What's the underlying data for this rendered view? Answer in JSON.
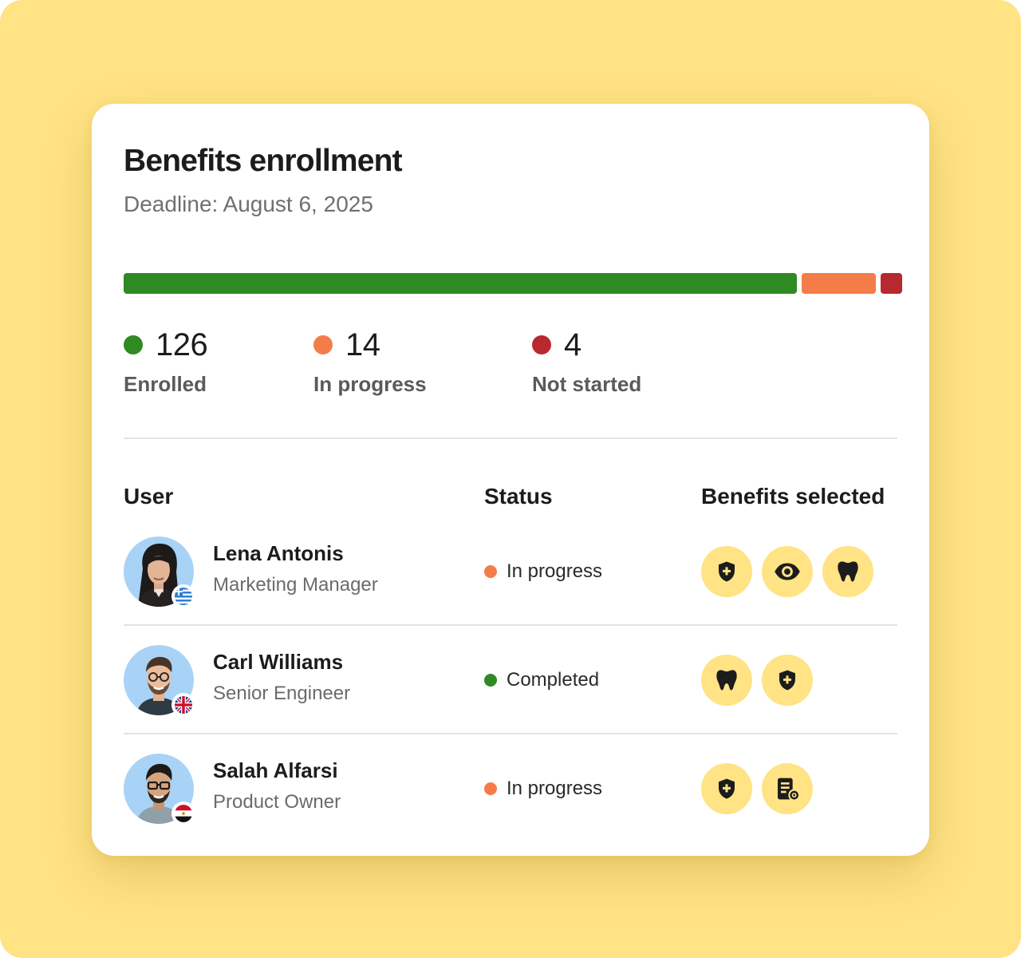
{
  "title": "Benefits enrollment",
  "deadline": "Deadline: August 6, 2025",
  "colors": {
    "enrolled": "#2f8a24",
    "in_progress": "#f47c48",
    "not_started": "#b7292e",
    "accent_bg": "#ffe384"
  },
  "stats": [
    {
      "key": "enrolled",
      "value": 126,
      "value_text": "126",
      "label": "Enrolled"
    },
    {
      "key": "in_progress",
      "value": 14,
      "value_text": "14",
      "label": "In progress"
    },
    {
      "key": "not_started",
      "value": 4,
      "value_text": "4",
      "label": "Not started"
    }
  ],
  "table": {
    "headers": {
      "user": "User",
      "status": "Status",
      "benefits": "Benefits selected"
    },
    "rows": [
      {
        "name": "Lena Antonis",
        "role": "Marketing Manager",
        "flag": "greece-flag-icon",
        "status": "In progress",
        "status_key": "in_progress",
        "benefits": [
          "health-shield-icon",
          "vision-eye-icon",
          "dental-tooth-icon"
        ]
      },
      {
        "name": "Carl Williams",
        "role": "Senior Engineer",
        "flag": "uk-flag-icon",
        "status": "Completed",
        "status_key": "enrolled",
        "benefits": [
          "dental-tooth-icon",
          "health-shield-icon"
        ]
      },
      {
        "name": "Salah Alfarsi",
        "role": "Product Owner",
        "flag": "egypt-flag-icon",
        "status": "In progress",
        "status_key": "in_progress",
        "benefits": [
          "health-shield-icon",
          "document-coverage-icon"
        ]
      }
    ]
  }
}
